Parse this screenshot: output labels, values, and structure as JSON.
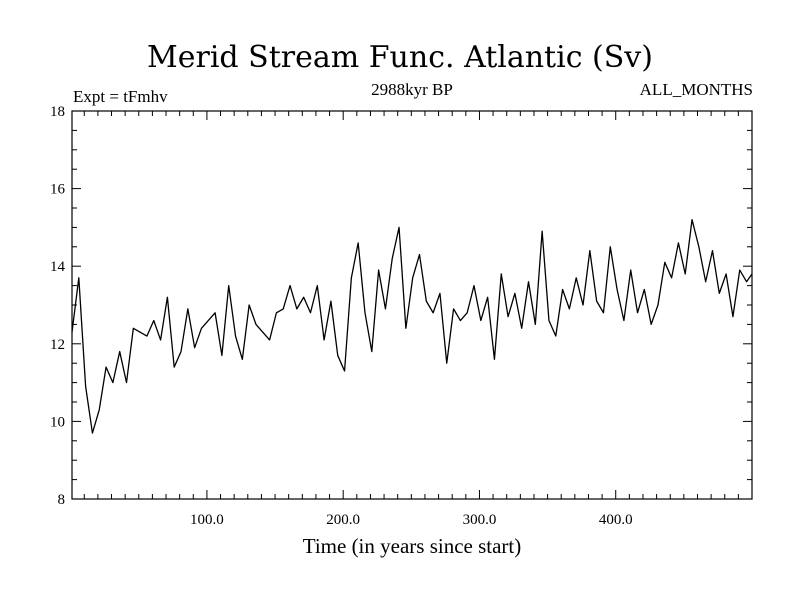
{
  "chart_data": {
    "type": "line",
    "title": "Merid Stream Func. Atlantic (Sv)",
    "left_header": "Expt = tFmhv",
    "center_header": "2988kyr BP",
    "right_header": "ALL_MONTHS",
    "xlabel": "Time (in years since start)",
    "ylabel": "",
    "xlim": [
      1,
      500
    ],
    "ylim": [
      8,
      18
    ],
    "xticks": [
      100,
      200,
      300,
      400
    ],
    "xtick_labels": [
      "100.0",
      "200.0",
      "300.0",
      "400.0"
    ],
    "yticks": [
      8,
      10,
      12,
      14,
      16,
      18
    ],
    "ytick_labels": [
      "8",
      "10",
      "12",
      "14",
      "16",
      "18"
    ],
    "grid": false,
    "series": [
      {
        "name": "Merid Stream Func. Atlantic",
        "color": "#000000",
        "x": [
          1,
          6,
          11,
          16,
          21,
          26,
          31,
          36,
          41,
          46,
          51,
          56,
          61,
          66,
          71,
          76,
          81,
          86,
          91,
          96,
          101,
          106,
          111,
          116,
          121,
          126,
          131,
          136,
          141,
          146,
          151,
          156,
          161,
          166,
          171,
          176,
          181,
          186,
          191,
          196,
          201,
          206,
          211,
          216,
          221,
          226,
          231,
          236,
          241,
          246,
          251,
          256,
          261,
          266,
          271,
          276,
          281,
          286,
          291,
          296,
          301,
          306,
          311,
          316,
          321,
          326,
          331,
          336,
          341,
          346,
          351,
          356,
          361,
          366,
          371,
          376,
          381,
          386,
          391,
          396,
          401,
          406,
          411,
          416,
          421,
          426,
          431,
          436,
          441,
          446,
          451,
          456,
          461,
          466,
          471,
          476,
          481,
          486,
          491,
          496,
          500
        ],
        "values": [
          12.3,
          13.7,
          10.9,
          9.7,
          10.3,
          11.4,
          11.0,
          11.8,
          11.0,
          12.4,
          12.3,
          12.2,
          12.6,
          12.1,
          13.2,
          11.4,
          11.8,
          12.9,
          11.9,
          12.4,
          12.6,
          12.8,
          11.7,
          13.5,
          12.2,
          11.6,
          13.0,
          12.5,
          12.3,
          12.1,
          12.8,
          12.9,
          13.5,
          12.9,
          13.2,
          12.8,
          13.5,
          12.1,
          13.1,
          11.7,
          11.3,
          13.7,
          14.6,
          12.8,
          11.8,
          13.9,
          12.9,
          14.2,
          15.0,
          12.4,
          13.7,
          14.3,
          13.1,
          12.8,
          13.3,
          11.5,
          12.9,
          12.6,
          12.8,
          13.5,
          12.6,
          13.2,
          11.6,
          13.8,
          12.7,
          13.3,
          12.4,
          13.6,
          12.5,
          14.9,
          12.6,
          12.2,
          13.4,
          12.9,
          13.7,
          13.0,
          14.4,
          13.1,
          12.8,
          14.5,
          13.4,
          12.6,
          13.9,
          12.8,
          13.4,
          12.5,
          13.0,
          14.1,
          13.7,
          14.6,
          13.8,
          15.2,
          14.5,
          13.6,
          14.4,
          13.3,
          13.8,
          12.7,
          13.9,
          13.6,
          13.8
        ]
      }
    ]
  }
}
